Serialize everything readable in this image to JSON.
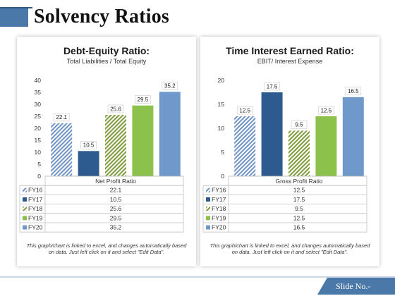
{
  "slide": {
    "title": "Solvency Ratios",
    "slide_no": "Slide No.-"
  },
  "panels": [
    {
      "title": "Debt-Equity Ratio:",
      "subtitle": "Total Liabilities / Total Equity",
      "note": "This graph/chart is linked to excel, and changes automatically based on data. Just left click on it and select \"Edit Data\"."
    },
    {
      "title": "Time Interest Earned Ratio:",
      "subtitle": "EBIT/ Interest Expense",
      "note": "This graph/chart is linked to excel, and changes automatically based on data. Just left click on it and select \"Edit Data\"."
    }
  ],
  "chart_data": [
    {
      "type": "bar",
      "title": "Debt-Equity Ratio:",
      "subtitle": "Total Liabilities / Total Equity",
      "category": "Net Profit Ratio",
      "series": [
        {
          "name": "FY16",
          "value": 22.1,
          "label": "22.1",
          "color": "#6f93c4",
          "pattern": "hatch"
        },
        {
          "name": "FY17",
          "value": 10.5,
          "label": "10.5",
          "color": "#2e5b8f",
          "pattern": "solid"
        },
        {
          "name": "FY18",
          "value": 25.6,
          "label": "25.6",
          "color": "#7d9b3a",
          "pattern": "hatch"
        },
        {
          "name": "FY19",
          "value": 29.5,
          "label": "29.5",
          "color": "#8cc14b",
          "pattern": "solid"
        },
        {
          "name": "FY20",
          "value": 35.2,
          "label": "35.2",
          "color": "#6f98cb",
          "pattern": "solid"
        }
      ],
      "yticks": [
        "0",
        "5",
        "10",
        "15",
        "20",
        "25",
        "30",
        "35",
        "40"
      ],
      "ylim": [
        0,
        40
      ],
      "grid": false,
      "legend": "data-table"
    },
    {
      "type": "bar",
      "title": "Time Interest Earned Ratio:",
      "subtitle": "EBIT/ Interest Expense",
      "category": "Gross Profit Ratio",
      "series": [
        {
          "name": "FY16",
          "value": 12.5,
          "label": "12.5",
          "color": "#6f93c4",
          "pattern": "hatch"
        },
        {
          "name": "FY17",
          "value": 17.5,
          "label": "17.5",
          "color": "#2e5b8f",
          "pattern": "solid"
        },
        {
          "name": "FY18",
          "value": 9.5,
          "label": "9.5",
          "color": "#7d9b3a",
          "pattern": "hatch"
        },
        {
          "name": "FY19",
          "value": 12.5,
          "label": "12.5",
          "color": "#8cc14b",
          "pattern": "solid"
        },
        {
          "name": "FY20",
          "value": 16.5,
          "label": "16.5",
          "color": "#6f98cb",
          "pattern": "solid"
        }
      ],
      "yticks": [
        "0",
        "5",
        "10",
        "15",
        "20"
      ],
      "ylim": [
        0,
        20
      ],
      "grid": false,
      "legend": "data-table"
    }
  ]
}
